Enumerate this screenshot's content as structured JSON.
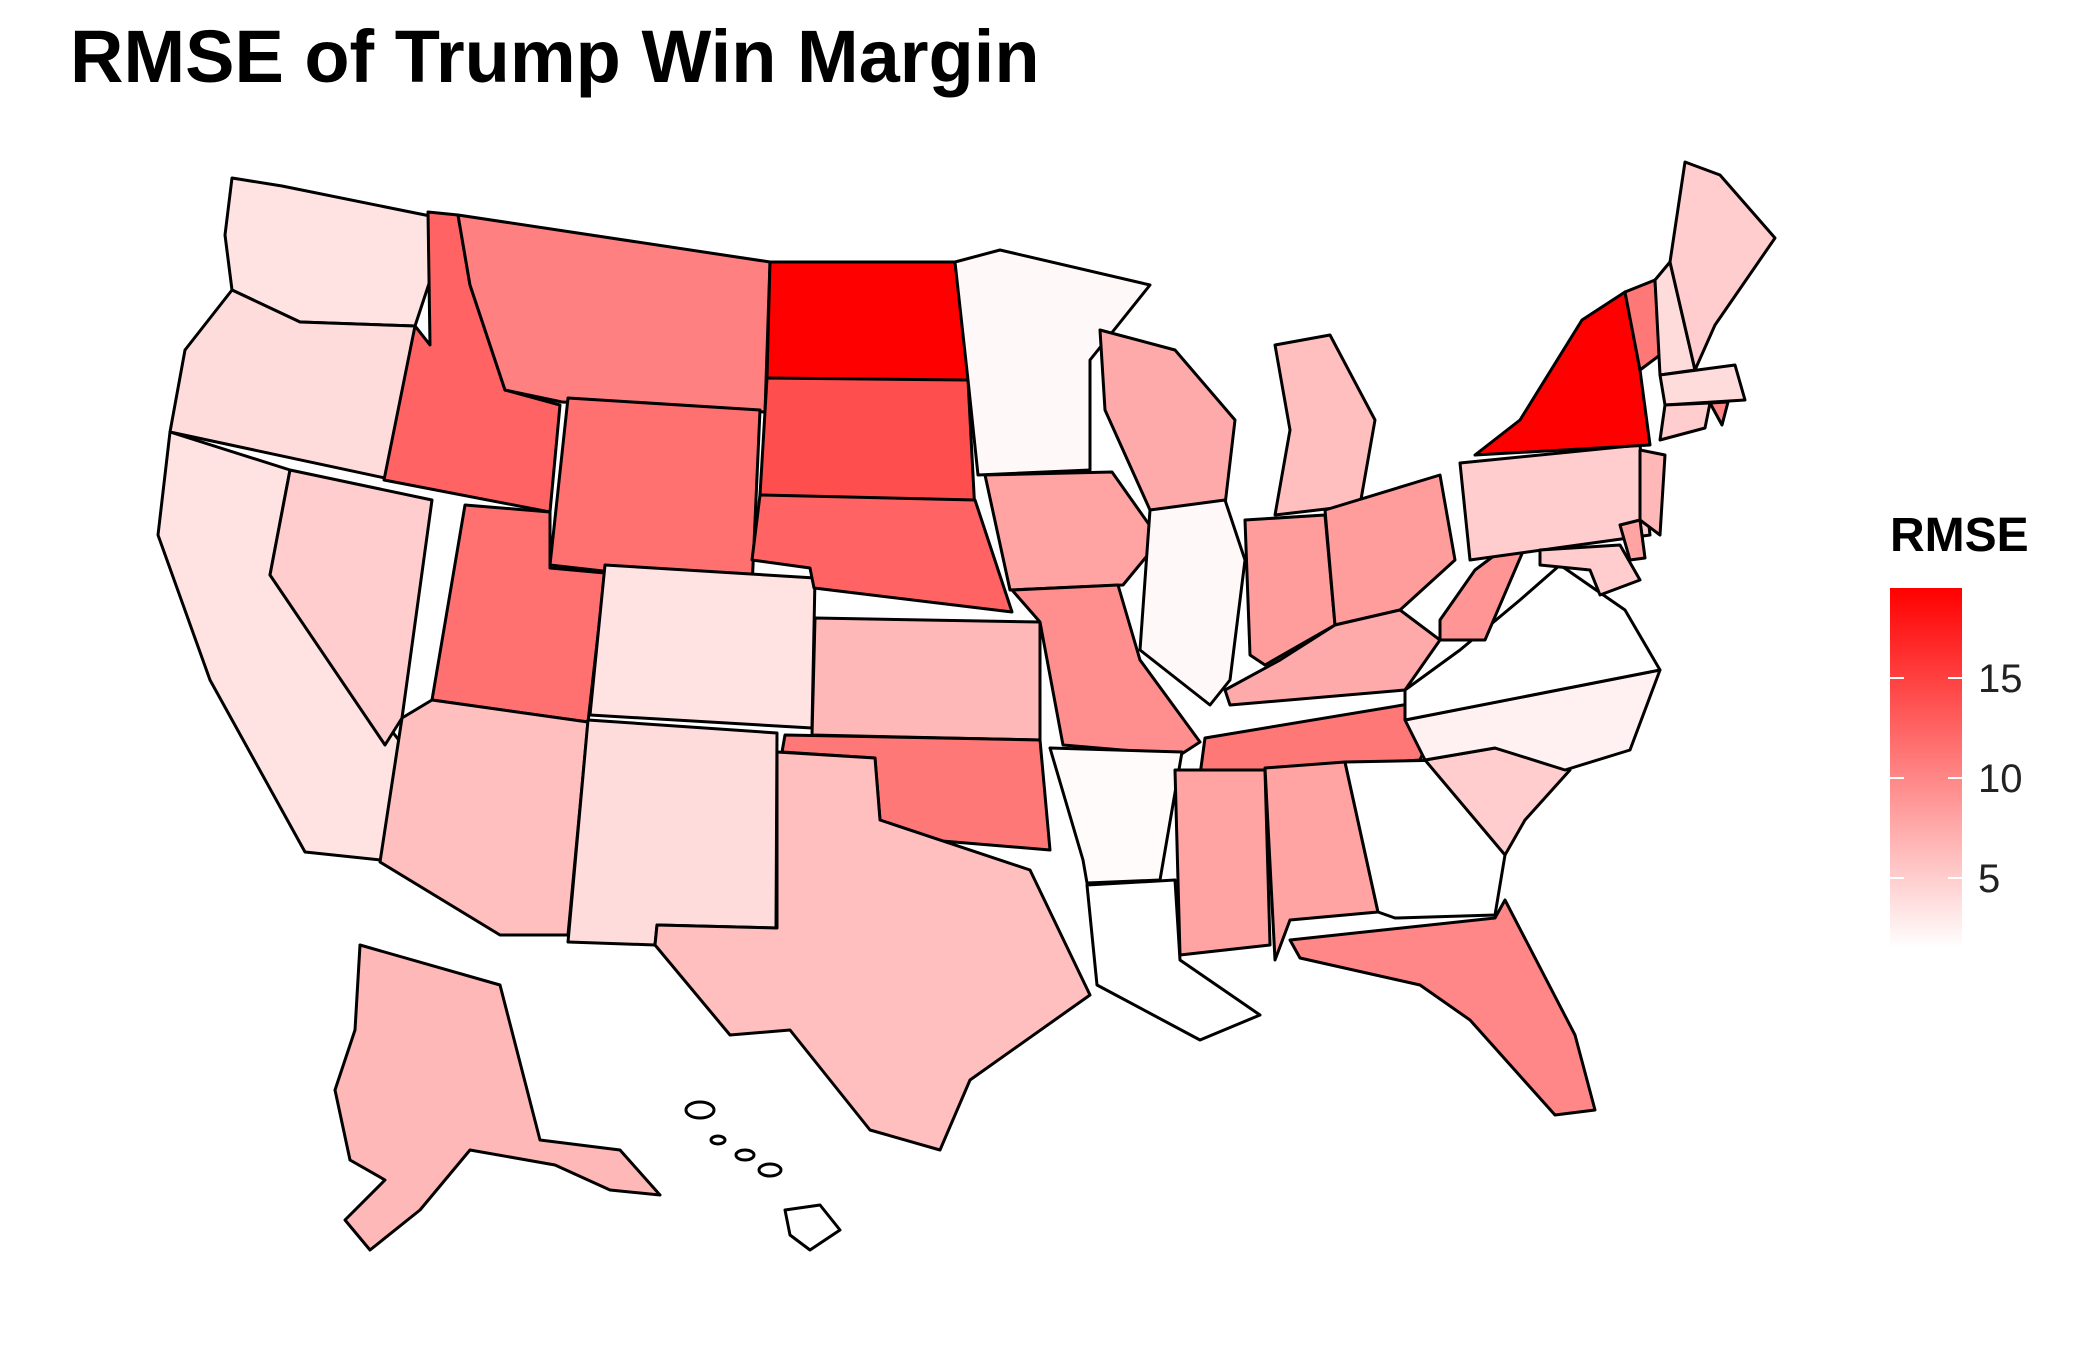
{
  "title": "RMSE of Trump Win Margin",
  "legend": {
    "title": "RMSE",
    "min": 1.5,
    "max": 19.5,
    "ticks": [
      5,
      10,
      15
    ],
    "tick_labels": [
      "5",
      "10",
      "15"
    ],
    "color_low": "#ffffff",
    "color_high": "#ff0000"
  },
  "states": [
    {
      "abbr": "WA",
      "value": 3.5
    },
    {
      "abbr": "OR",
      "value": 4
    },
    {
      "abbr": "CA",
      "value": 3.5
    },
    {
      "abbr": "NV",
      "value": 5
    },
    {
      "abbr": "ID",
      "value": 12.5
    },
    {
      "abbr": "MT",
      "value": 10.5
    },
    {
      "abbr": "WY",
      "value": 11.5
    },
    {
      "abbr": "UT",
      "value": 11.5
    },
    {
      "abbr": "AZ",
      "value": 6
    },
    {
      "abbr": "CO",
      "value": 3.5
    },
    {
      "abbr": "NM",
      "value": 4
    },
    {
      "abbr": "ND",
      "value": 19.5
    },
    {
      "abbr": "SD",
      "value": 14
    },
    {
      "abbr": "NE",
      "value": 12.5
    },
    {
      "abbr": "KS",
      "value": 6.5
    },
    {
      "abbr": "OK",
      "value": 11
    },
    {
      "abbr": "TX",
      "value": 6
    },
    {
      "abbr": "MN",
      "value": 2
    },
    {
      "abbr": "IA",
      "value": 8
    },
    {
      "abbr": "MO",
      "value": 9.5
    },
    {
      "abbr": "AR",
      "value": 1.8
    },
    {
      "abbr": "LA",
      "value": 1.5
    },
    {
      "abbr": "WI",
      "value": 7.5
    },
    {
      "abbr": "IL",
      "value": 2
    },
    {
      "abbr": "MI",
      "value": 6
    },
    {
      "abbr": "IN",
      "value": 8.5
    },
    {
      "abbr": "OH",
      "value": 8.5
    },
    {
      "abbr": "KY",
      "value": 7.5
    },
    {
      "abbr": "TN",
      "value": 11
    },
    {
      "abbr": "MS",
      "value": 8
    },
    {
      "abbr": "AL",
      "value": 8
    },
    {
      "abbr": "GA",
      "value": 1.5
    },
    {
      "abbr": "FL",
      "value": 10
    },
    {
      "abbr": "SC",
      "value": 5
    },
    {
      "abbr": "NC",
      "value": 2.5
    },
    {
      "abbr": "VA",
      "value": 1.5
    },
    {
      "abbr": "WV",
      "value": 9
    },
    {
      "abbr": "PA",
      "value": 5
    },
    {
      "abbr": "NY",
      "value": 19.5
    },
    {
      "abbr": "VT",
      "value": 11
    },
    {
      "abbr": "NH",
      "value": 4
    },
    {
      "abbr": "ME",
      "value": 5
    },
    {
      "abbr": "MA",
      "value": 4
    },
    {
      "abbr": "RI",
      "value": 10
    },
    {
      "abbr": "CT",
      "value": 5
    },
    {
      "abbr": "NJ",
      "value": 6.5
    },
    {
      "abbr": "DE",
      "value": 8
    },
    {
      "abbr": "MD",
      "value": 5
    },
    {
      "abbr": "AK",
      "value": 6.5
    },
    {
      "abbr": "HI",
      "value": 1.5
    }
  ]
}
